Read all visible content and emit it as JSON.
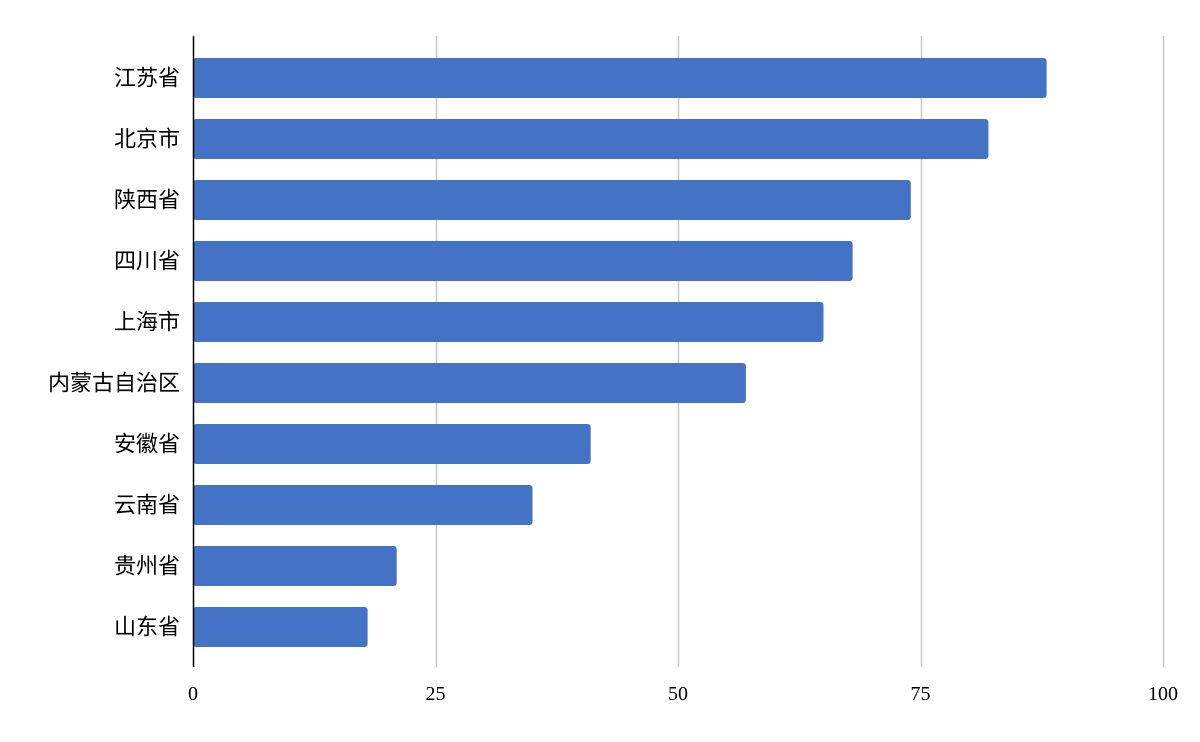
{
  "chart_data": {
    "type": "bar",
    "orientation": "horizontal",
    "title": "",
    "xlabel": "",
    "ylabel": "",
    "categories": [
      "江苏省",
      "北京市",
      "陕西省",
      "四川省",
      "上海市",
      "内蒙古自治区",
      "安徽省",
      "云南省",
      "贵州省",
      "山东省"
    ],
    "values": [
      88,
      82,
      74,
      68,
      65,
      57,
      41,
      35,
      21,
      18
    ],
    "xlim": [
      0,
      100
    ],
    "xticks": [
      0,
      25,
      50,
      75,
      100
    ],
    "xtick_labels": [
      "0",
      "25",
      "50",
      "75",
      "100"
    ],
    "grid": "vertical",
    "legend": "none",
    "bar_color": "#4472C4",
    "grid_color": "#C8C8C8",
    "axis_color": "#000000"
  }
}
